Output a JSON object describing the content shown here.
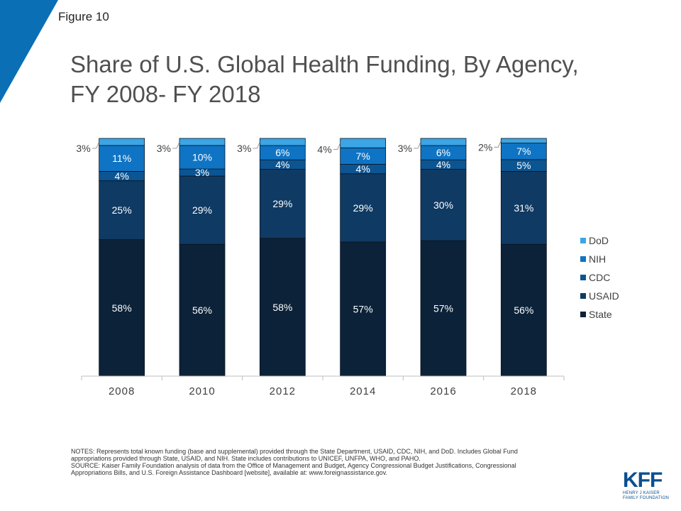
{
  "figure_label": "Figure 10",
  "title": "Share of U.S. Global Health Funding, By Agency, FY 2008- FY 2018",
  "colors": {
    "State": "#0b2239",
    "USAID": "#0f3a63",
    "CDC": "#0b5593",
    "NIH": "#0f74c4",
    "DoD": "#3ba5e6",
    "corner": "#0a6fb5",
    "brand": "#0a4f8f"
  },
  "chart_data": {
    "type": "bar",
    "stacked": true,
    "categories": [
      "2008",
      "2010",
      "2012",
      "2014",
      "2016",
      "2018"
    ],
    "series": [
      {
        "name": "State",
        "values": [
          58,
          56,
          58,
          57,
          57,
          56
        ],
        "labels": [
          "58%",
          "56%",
          "58%",
          "57%",
          "57%",
          "56%"
        ]
      },
      {
        "name": "USAID",
        "values": [
          25,
          29,
          29,
          29,
          30,
          31
        ],
        "labels": [
          "25%",
          "29%",
          "29%",
          "29%",
          "30%",
          "31%"
        ]
      },
      {
        "name": "CDC",
        "values": [
          4,
          3,
          4,
          4,
          4,
          5
        ],
        "labels": [
          "4%",
          "3%",
          "4%",
          "4%",
          "4%",
          "5%"
        ]
      },
      {
        "name": "NIH",
        "values": [
          11,
          10,
          6,
          7,
          6,
          7
        ],
        "labels": [
          "11%",
          "10%",
          "6%",
          "7%",
          "6%",
          "7%"
        ]
      },
      {
        "name": "DoD",
        "values": [
          3,
          3,
          3,
          4,
          3,
          2
        ],
        "labels": [
          "3%",
          "3%",
          "3%",
          "4%",
          "3%",
          "2%"
        ]
      }
    ],
    "legend_order": [
      "DoD",
      "NIH",
      "CDC",
      "USAID",
      "State"
    ],
    "legend_position": "right",
    "ylim": [
      0,
      100
    ],
    "grid": false
  },
  "notes": "NOTES:  Represents total known funding (base and supplemental) provided through the State Department, USAID, CDC, NIH, and DoD. Includes Global Fund appropriations provided through State, USAID, and NIH.  State includes contributions to UNICEF, UNFPA, WHO, and PAHO.",
  "source": "SOURCE:  Kaiser Family Foundation analysis of data from the Office of Management and Budget, Agency Congressional Budget Justifications, Congressional Appropriations Bills, and U.S. Foreign Assistance Dashboard [website], available at: www.foreignassistance.gov.",
  "logo": {
    "mark": "KFF",
    "line1": "HENRY J KAISER",
    "line2": "FAMILY FOUNDATION"
  }
}
